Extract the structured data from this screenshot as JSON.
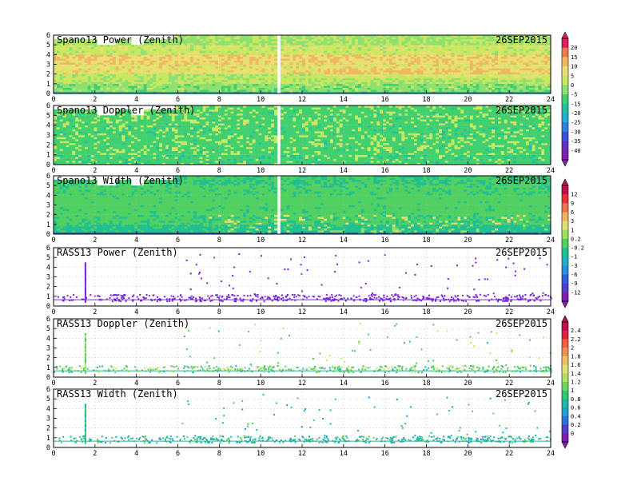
{
  "chart_data": [
    {
      "type": "heatmap",
      "title": "Spano13 Power (Zenith)",
      "date": "26SEP2015",
      "x_ticks": [
        0,
        2,
        4,
        6,
        8,
        10,
        12,
        14,
        16,
        18,
        20,
        22,
        24
      ],
      "y_ticks": [
        0,
        1,
        2,
        3,
        4,
        5,
        6
      ],
      "xlim": [
        0,
        24
      ],
      "ylim": [
        0,
        6
      ],
      "colorbar": "power",
      "field": {
        "kind": "power",
        "base": [
          -8,
          -4,
          2,
          4,
          -2,
          -6,
          -10,
          -14
        ],
        "noise": 4,
        "missing_x": [
          10.85
        ]
      }
    },
    {
      "type": "heatmap",
      "title": "Spano13 Doppler (Zenith)",
      "date": "26SEP2015",
      "x_ticks": [
        0,
        2,
        4,
        6,
        8,
        10,
        12,
        14,
        16,
        18,
        20,
        22,
        24
      ],
      "y_ticks": [
        0,
        1,
        2,
        3,
        4,
        5,
        6
      ],
      "xlim": [
        0,
        24
      ],
      "ylim": [
        0,
        6
      ],
      "colorbar": null,
      "field": {
        "kind": "doppler",
        "base": [
          -0.1,
          0.1,
          0.1,
          0,
          0.1,
          0.1,
          -0.1,
          -0.1
        ],
        "noise": 0.9,
        "missing_x": [
          10.85
        ]
      }
    },
    {
      "type": "heatmap",
      "title": "Spano13 Width (Zenith)",
      "date": "26SEP2015",
      "x_ticks": [
        0,
        2,
        4,
        6,
        8,
        10,
        12,
        14,
        16,
        18,
        20,
        22,
        24
      ],
      "y_ticks": [
        0,
        1,
        2,
        3,
        4,
        5,
        6
      ],
      "xlim": [
        0,
        24
      ],
      "ylim": [
        0,
        6
      ],
      "colorbar": "width",
      "field": {
        "kind": "width",
        "base": [
          -1.5,
          -0.5,
          -0.2,
          -0.1,
          -0.4,
          -0.9,
          -1.5,
          -2
        ],
        "noise": 0.9,
        "missing_x": [
          10.85
        ]
      }
    },
    {
      "type": "scatter",
      "title": "RASS13 Power (Zenith)",
      "date": "26SEP2015",
      "x_ticks": [
        0,
        2,
        4,
        6,
        8,
        10,
        12,
        14,
        16,
        18,
        20,
        22,
        24
      ],
      "y_ticks": [
        0,
        1,
        2,
        3,
        4,
        5,
        6
      ],
      "xlim": [
        0,
        24
      ],
      "ylim": [
        0,
        6
      ],
      "colorbar": null,
      "rass": {
        "kind": "rasspower",
        "spike_x": 1.5,
        "spike_top": 4.5
      }
    },
    {
      "type": "scatter",
      "title": "RASS13 Doppler (Zenith)",
      "date": "26SEP2015",
      "x_ticks": [
        0,
        2,
        4,
        6,
        8,
        10,
        12,
        14,
        16,
        18,
        20,
        22,
        24
      ],
      "y_ticks": [
        0,
        1,
        2,
        3,
        4,
        5,
        6
      ],
      "xlim": [
        0,
        24
      ],
      "ylim": [
        0,
        6
      ],
      "colorbar": "doppler",
      "rass": {
        "kind": "rassdoppler",
        "spike_x": 1.5,
        "spike_top": 4.5
      }
    },
    {
      "type": "scatter",
      "title": "RASS13 Width (Zenith)",
      "date": "26SEP2015",
      "x_ticks": [
        0,
        2,
        4,
        6,
        8,
        10,
        12,
        14,
        16,
        18,
        20,
        22,
        24
      ],
      "y_ticks": [
        0,
        1,
        2,
        3,
        4,
        5,
        6
      ],
      "xlim": [
        0,
        24
      ],
      "ylim": [
        0,
        6
      ],
      "colorbar": null,
      "rass": {
        "kind": "rasswidth",
        "spike_x": 1.5,
        "spike_top": 4.5
      }
    }
  ],
  "colorbars": {
    "power": {
      "labels": [
        "20",
        "15",
        "10",
        "5",
        "0",
        "-5",
        "-15",
        "-20",
        "-25",
        "-30",
        "-35",
        "-40"
      ],
      "colors": [
        "#e0205a",
        "#f07850",
        "#f0b860",
        "#e8e070",
        "#c8e860",
        "#8ee070",
        "#40d070",
        "#20c0a0",
        "#20b0d0",
        "#3080e0",
        "#4050e0",
        "#6030c8",
        "#8020b0"
      ]
    },
    "width": {
      "labels": [
        "12",
        "9",
        "6",
        "3",
        "1",
        "0.2",
        "-0.2",
        "-1",
        "-3",
        "-6",
        "-9",
        "-12"
      ],
      "colors": [
        "#c01050",
        "#e83040",
        "#f07050",
        "#f0b060",
        "#e0e070",
        "#a0e060",
        "#50d060",
        "#20c090",
        "#20b0c8",
        "#2890e0",
        "#3060e0",
        "#5040d0",
        "#8020b0"
      ]
    },
    "doppler": {
      "labels": [
        "2.4",
        "2.2",
        "2",
        "1.8",
        "1.6",
        "1.4",
        "1.2",
        "1",
        "0.8",
        "0.6",
        "0.4",
        "0.2",
        "0"
      ],
      "colors": [
        "#c01050",
        "#e02040",
        "#f06040",
        "#f09050",
        "#f0c060",
        "#e0e070",
        "#b0e060",
        "#70d860",
        "#30c870",
        "#20b8a8",
        "#20a0d0",
        "#3070e0",
        "#5040d0",
        "#8020b0"
      ]
    }
  }
}
